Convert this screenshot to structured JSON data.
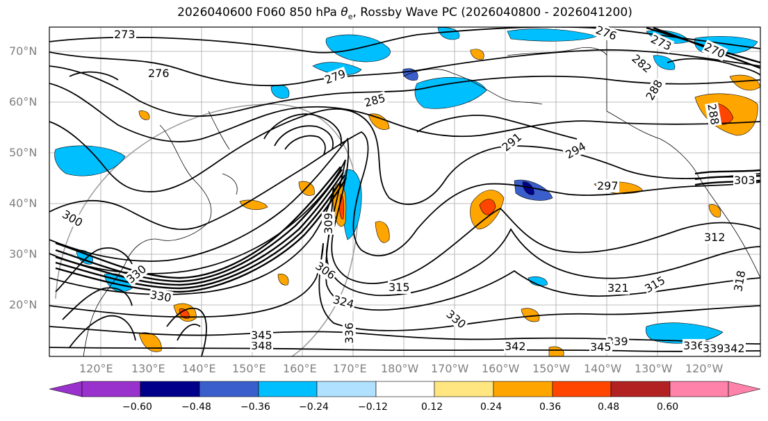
{
  "title": {
    "prefix": "2026040600 F060 850 hPa ",
    "theta": "θ",
    "sub": "e",
    "suffix": ", Rossby Wave PC (2026040800 - 2026041200)"
  },
  "lat_labels": [
    "70°N",
    "60°N",
    "50°N",
    "40°N",
    "30°N",
    "20°N"
  ],
  "lon_labels": [
    "120°E",
    "130°E",
    "140°E",
    "150°E",
    "160°E",
    "170°E",
    "180°W",
    "170°W",
    "160°W",
    "150°W",
    "140°W",
    "130°W",
    "120°W"
  ],
  "contour_labels": [
    "273",
    "276",
    "279",
    "285",
    "276",
    "273",
    "270",
    "282",
    "288",
    "288",
    "291",
    "294",
    "297",
    "303",
    "309",
    "306",
    "300",
    "312",
    "315",
    "321",
    "315",
    "318",
    "324",
    "330",
    "330",
    "336",
    "330",
    "339",
    "342",
    "345",
    "348",
    "345",
    "336",
    "339",
    "342"
  ],
  "colorbar": {
    "ticks": [
      "−0.60",
      "−0.48",
      "−0.36",
      "−0.24",
      "−0.12",
      "0.12",
      "0.24",
      "0.36",
      "0.48",
      "0.60"
    ],
    "colors": [
      "#9932cc",
      "#00008b",
      "#3a5fcd",
      "#00bfff",
      "#b0e2ff",
      "#ffffff",
      "#ffe680",
      "#ffa500",
      "#ff4500",
      "#b22222",
      "#ff82ab"
    ]
  }
}
